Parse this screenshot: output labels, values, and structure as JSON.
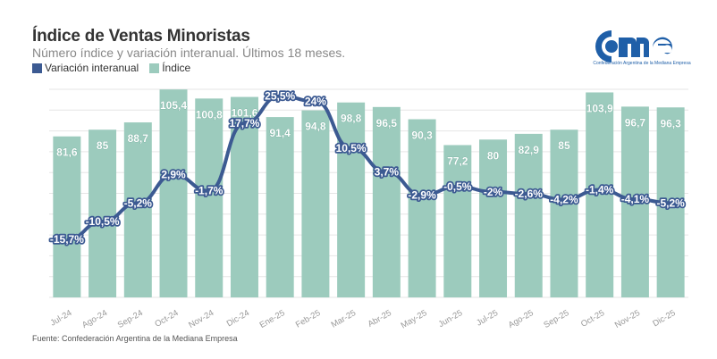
{
  "header": {
    "title": "Índice de Ventas Minoristas",
    "subtitle": "Número índice y variación interanual. Últimos 18 meses."
  },
  "logo": {
    "text": "came",
    "tagline": "Confederación Argentina de la Mediana Empresa",
    "color": "#1f5fa8"
  },
  "footer": {
    "source": "Fuente: Confederación Argentina de la Mediana Empresa"
  },
  "colors": {
    "bar": "#9ccbbd",
    "line": "#3c5a92",
    "label_bar_text": "#ffffff",
    "grid": "#e6e6e6",
    "axis_text": "#999999"
  },
  "chart_data": {
    "type": "bar",
    "title": "Índice de Ventas Minoristas",
    "subtitle": "Número índice y variación interanual. Últimos 18 meses.",
    "xlabel": "",
    "ylabel": "",
    "legend_position": "top-left",
    "grid": true,
    "categories": [
      "Jul-24",
      "Ago-24",
      "Sep-24",
      "Oct-24",
      "Nov-24",
      "Dic-24",
      "Ene-25",
      "Feb-25",
      "Mar-25",
      "Abr-25",
      "May-25",
      "Jun-25",
      "Jul-25",
      "Ago-25",
      "Sep-25",
      "Oct-25",
      "Nov-25",
      "Dic-25"
    ],
    "series": [
      {
        "name": "Variación interanual",
        "type": "line",
        "unit": "%",
        "values": [
          -15.7,
          -10.5,
          -5.2,
          2.9,
          -1.7,
          17.7,
          25.5,
          24,
          10.5,
          3.7,
          -2.9,
          -0.5,
          -2,
          -2.6,
          -4.2,
          -1.4,
          -4.1,
          -5.2
        ],
        "labels": [
          "-15,7%",
          "-10,5%",
          "-5,2%",
          "2,9%",
          "-1,7%",
          "17,7%",
          "25,5%",
          "24%",
          "10,5%",
          "3,7%",
          "-2,9%",
          "-0,5%",
          "-2%",
          "-2,6%",
          "-4,2%",
          "-1,4%",
          "-4,1%",
          "-5,2%"
        ],
        "ylim": [
          -35,
          35
        ]
      },
      {
        "name": "Índice",
        "type": "bar",
        "values": [
          81.6,
          85,
          88.7,
          105.4,
          100.8,
          101.6,
          91.4,
          94.8,
          98.8,
          96.5,
          90.3,
          77.2,
          80,
          82.9,
          85,
          103.9,
          96.7,
          96.3
        ],
        "labels": [
          "81,6",
          "85",
          "88,7",
          "105,4",
          "100,8",
          "101,6",
          "91,4",
          "94,8",
          "98,8",
          "96,5",
          "90,3",
          "77,2",
          "80",
          "82,9",
          "85",
          "103,9",
          "96,7",
          "96,3"
        ],
        "ylim": [
          0,
          110
        ]
      }
    ]
  }
}
